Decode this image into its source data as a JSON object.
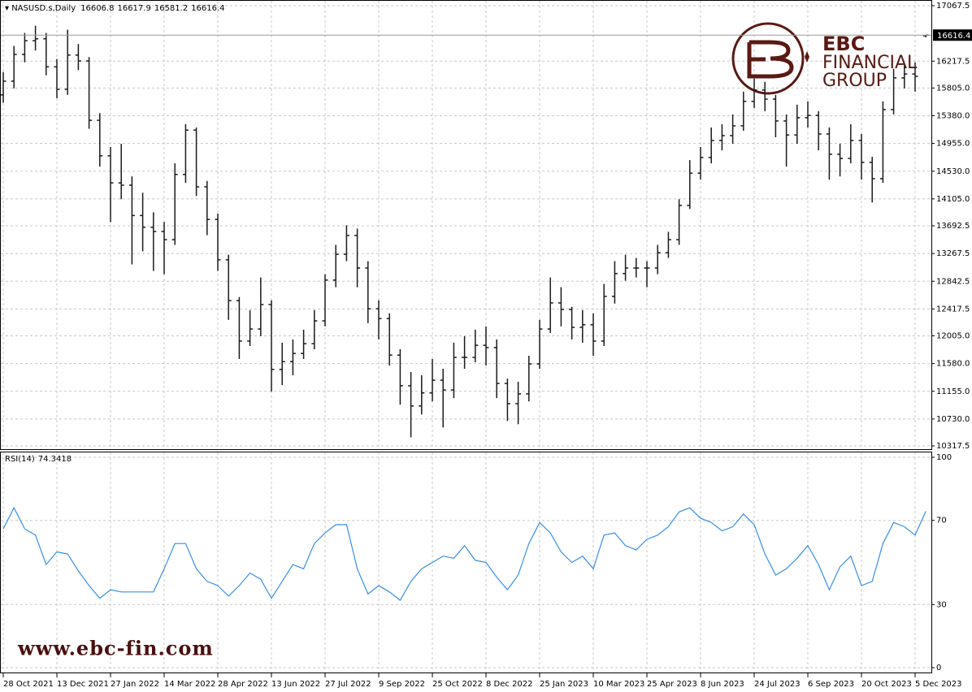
{
  "chart_data": [
    {
      "type": "ohlc",
      "title": "NASUSD.s,Daily",
      "color": "#1a1a1a",
      "categories": [
        "28 Oct 2021",
        null,
        null,
        null,
        null,
        "13 Dec 2021",
        null,
        null,
        null,
        null,
        "27 Jan 2022",
        null,
        null,
        null,
        null,
        "14 Mar 2022",
        null,
        null,
        null,
        null,
        "28 Apr 2022",
        null,
        null,
        null,
        null,
        "13 Jun 2022",
        null,
        null,
        null,
        null,
        "27 Jul 2022",
        null,
        null,
        null,
        null,
        "9 Sep 2022",
        null,
        null,
        null,
        null,
        "25 Oct 2022",
        null,
        null,
        null,
        null,
        "8 Dec 2022",
        null,
        null,
        null,
        null,
        "25 Jan 2023",
        null,
        null,
        null,
        null,
        "10 Mar 2023",
        null,
        null,
        null,
        null,
        "25 Apr 2023",
        null,
        null,
        null,
        null,
        "8 Jun 2023",
        null,
        null,
        null,
        null,
        "24 Jul 2023",
        null,
        null,
        null,
        null,
        "6 Sep 2023",
        null,
        null,
        null,
        null,
        "20 Oct 2023",
        null,
        null,
        null,
        null,
        "5 Dec 2023",
        null
      ],
      "open": [
        15700,
        15910,
        16320,
        16530,
        16560,
        16130,
        15785,
        16310,
        16220,
        15310,
        14765,
        14350,
        14315,
        13850,
        13670,
        13605,
        13480,
        14480,
        15160,
        14290,
        13790,
        13170,
        12545,
        11925,
        12110,
        12485,
        11490,
        11610,
        11735,
        11885,
        12235,
        12860,
        13255,
        13545,
        13045,
        12420,
        12270,
        11710,
        11240,
        10930,
        11130,
        11325,
        11175,
        11675,
        11675,
        11860,
        11825,
        11275,
        10965,
        11115,
        11575,
        12110,
        12510,
        12410,
        12135,
        12175,
        11925,
        12610,
        12960,
        13045,
        13045,
        13045,
        13280,
        13480,
        14005,
        14500,
        14740,
        15000,
        15075,
        15225,
        15600,
        15775,
        15635,
        15300,
        15085,
        15350,
        15385,
        15100,
        14790,
        14725,
        15000,
        14665,
        14415,
        15475,
        15960,
        16020,
        16606.8
      ],
      "high": [
        16050,
        16450,
        16650,
        16760,
        16650,
        16250,
        16700,
        16480,
        16280,
        15420,
        14900,
        14950,
        14450,
        14200,
        13900,
        13750,
        14650,
        15250,
        15200,
        14380,
        13880,
        13250,
        12600,
        12400,
        12900,
        12550,
        11900,
        11950,
        12100,
        12400,
        12950,
        13400,
        13700,
        13650,
        13150,
        12550,
        12350,
        11800,
        11450,
        11400,
        11650,
        11500,
        11900,
        12000,
        12100,
        12150,
        11950,
        11350,
        11300,
        11700,
        12250,
        12900,
        12750,
        12450,
        12400,
        12350,
        12800,
        13150,
        13250,
        13200,
        13150,
        13400,
        13600,
        14100,
        14700,
        14900,
        15200,
        15250,
        15400,
        15750,
        15950,
        15900,
        15700,
        15400,
        15550,
        15600,
        15450,
        15200,
        14950,
        15250,
        15100,
        14750,
        15600,
        16100,
        16150,
        16200,
        16617.9
      ],
      "low": [
        15580,
        15800,
        16200,
        16380,
        16000,
        15650,
        15700,
        16080,
        15180,
        14600,
        13750,
        14100,
        13100,
        13300,
        13000,
        12950,
        13400,
        14350,
        14150,
        13550,
        13000,
        12250,
        11650,
        11850,
        12000,
        11150,
        11250,
        11400,
        11650,
        11800,
        12150,
        12750,
        13150,
        12750,
        12200,
        11950,
        11550,
        10950,
        10450,
        10800,
        11000,
        10600,
        11050,
        11500,
        11600,
        11550,
        11050,
        10700,
        10650,
        11000,
        11500,
        12050,
        12150,
        11950,
        11900,
        11700,
        11850,
        12500,
        12850,
        12900,
        12750,
        12950,
        13200,
        13400,
        13950,
        14400,
        14650,
        14850,
        14950,
        15150,
        15500,
        15450,
        15050,
        14600,
        14950,
        15200,
        14850,
        14400,
        14450,
        14650,
        14400,
        14050,
        14350,
        15400,
        15800,
        15750,
        16581.2
      ],
      "close": [
        15910,
        16320,
        16530,
        16560,
        16130,
        15785,
        16310,
        16220,
        15310,
        14765,
        14350,
        14315,
        13850,
        13670,
        13605,
        13480,
        14480,
        15160,
        14290,
        13790,
        13170,
        12545,
        11925,
        12110,
        12485,
        11490,
        11610,
        11735,
        11885,
        12235,
        12860,
        13255,
        13545,
        13045,
        12420,
        12270,
        11710,
        11240,
        10930,
        11130,
        11325,
        11175,
        11675,
        11675,
        11860,
        11825,
        11275,
        10965,
        11115,
        11575,
        12110,
        12510,
        12410,
        12135,
        12175,
        11925,
        12610,
        12960,
        13045,
        13045,
        13045,
        13280,
        13480,
        14005,
        14500,
        14740,
        15000,
        15075,
        15225,
        15600,
        15775,
        15635,
        15300,
        15085,
        15350,
        15385,
        15100,
        14790,
        14725,
        15000,
        14665,
        14415,
        15475,
        15960,
        16020,
        15985,
        16616.4
      ],
      "ylim": [
        10317.5,
        17067.5
      ],
      "yticks": [
        10317.5,
        {
          "value": 10730,
          "label": "10730.0"
        },
        {
          "value": 11155,
          "label": "11155.0"
        },
        {
          "value": 11580,
          "label": "11580.0"
        },
        {
          "value": 12005,
          "label": "12005.0"
        },
        12417.5,
        12842.5,
        13267.5,
        13692.5,
        {
          "value": 14105,
          "label": "14105.0"
        },
        {
          "value": 14530,
          "label": "14530.0"
        },
        {
          "value": 14955,
          "label": "14955.0"
        },
        {
          "value": 15380,
          "label": "15380.0"
        },
        {
          "value": 15805,
          "label": "15805.0"
        },
        16217.5,
        17067.5
      ],
      "grid": true
    },
    {
      "type": "line",
      "title": "RSI(14)",
      "color": "#3a8ee6",
      "values": [
        66,
        76,
        66,
        63,
        49,
        55,
        54,
        46,
        39,
        33,
        37,
        36,
        36,
        36,
        36,
        47,
        59,
        59,
        47,
        41,
        39,
        34,
        39,
        45,
        42,
        33,
        41,
        49,
        47,
        59,
        64,
        68,
        68,
        47,
        35,
        39,
        36,
        32,
        41,
        47,
        50,
        53,
        52,
        58,
        51,
        50,
        43,
        37,
        44,
        59,
        69,
        64,
        55,
        50,
        53,
        47,
        63,
        64,
        58,
        56,
        61,
        63,
        67,
        74,
        76,
        71,
        69,
        65,
        67,
        73,
        68,
        54,
        44,
        47,
        52,
        58,
        49,
        37,
        48,
        53,
        39,
        41,
        59,
        69,
        67,
        63,
        74.3418
      ],
      "ylim": [
        0,
        100
      ],
      "yticks": [
        0,
        30,
        70,
        100
      ],
      "grid": true
    }
  ],
  "watermark": {
    "brand": "EBC",
    "line2": "FINANCIAL",
    "line3": "GROUP",
    "url": "www.ebc-fin.com"
  }
}
